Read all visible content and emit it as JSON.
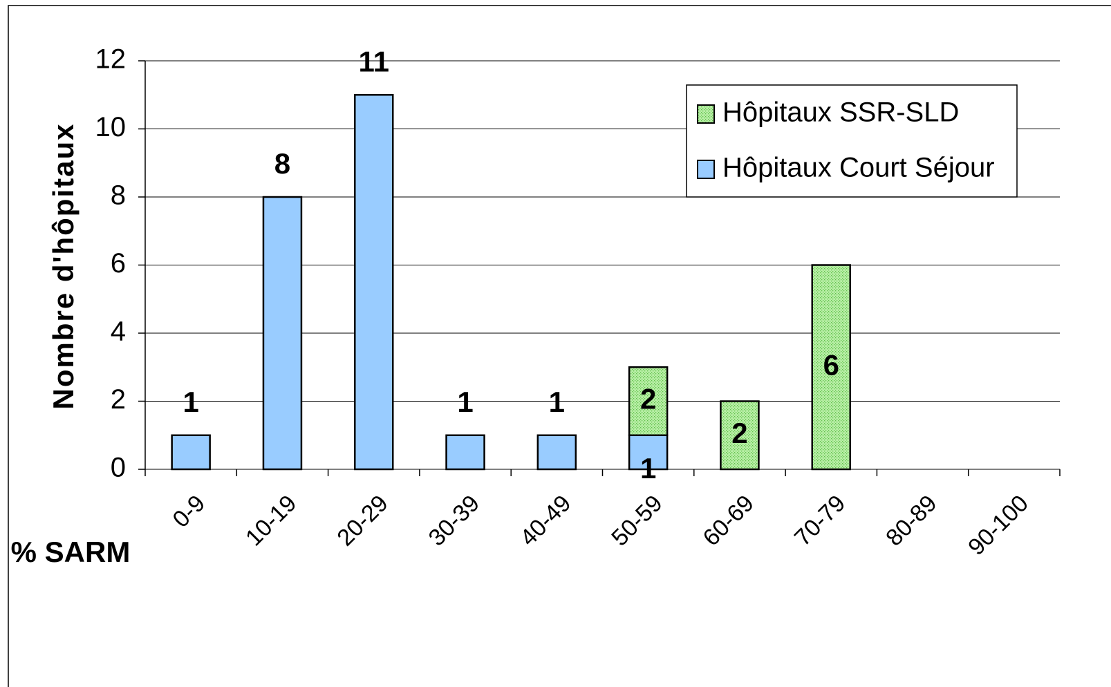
{
  "chart_data": {
    "type": "stacked-bar",
    "y_label": "Nombre d'hôpitaux",
    "x_label": "% SARM",
    "categories": [
      "0-9",
      "10-19",
      "20-29",
      "30-39",
      "40-49",
      "50-59",
      "60-69",
      "70-79",
      "80-89",
      "90-100"
    ],
    "series": [
      {
        "name": "Hôpitaux SSR-SLD",
        "color": "#b8efa6",
        "values": [
          null,
          null,
          null,
          null,
          null,
          2,
          2,
          6,
          null,
          null
        ]
      },
      {
        "name": "Hôpitaux Court Séjour",
        "color": "#99ccff",
        "values": [
          1,
          8,
          11,
          1,
          1,
          1,
          null,
          null,
          null,
          null
        ]
      }
    ],
    "ylim": [
      0,
      12
    ],
    "yticks": [
      0,
      2,
      4,
      6,
      8,
      10,
      12
    ],
    "grid": true,
    "legend": "upper right"
  }
}
